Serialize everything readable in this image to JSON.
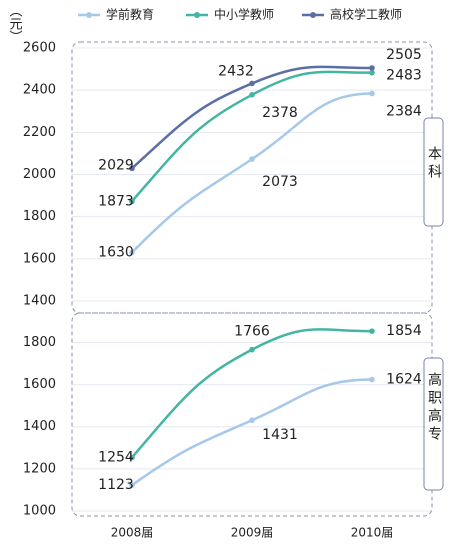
{
  "chart_data": [
    {
      "type": "line",
      "panel_label": "本科",
      "ylabel": "（元）",
      "ylim": [
        1400,
        2600
      ],
      "yticks": [
        1400,
        1600,
        1800,
        2000,
        2200,
        2400,
        2600
      ],
      "grid": true,
      "series": [
        {
          "name": "学前教育",
          "color": "#a6c8ea",
          "values": [
            1630,
            2073,
            2384
          ]
        },
        {
          "name": "中小学教师",
          "color": "#44b5a2",
          "values": [
            1873,
            2378,
            2483
          ]
        },
        {
          "name": "高校学工教师",
          "color": "#5b6ea6",
          "values": [
            2029,
            2432,
            2505
          ]
        }
      ]
    },
    {
      "type": "line",
      "panel_label": "高职高专",
      "categories": [
        "2008届",
        "2009届",
        "2010届"
      ],
      "ylim": [
        1000,
        1940
      ],
      "yticks": [
        1000,
        1200,
        1400,
        1600,
        1800
      ],
      "grid": true,
      "series": [
        {
          "color": "#a6c8ea",
          "values": [
            1123,
            1431,
            1624
          ]
        },
        {
          "color": "#44b5a2",
          "values": [
            1254,
            1766,
            1854
          ]
        }
      ]
    }
  ]
}
